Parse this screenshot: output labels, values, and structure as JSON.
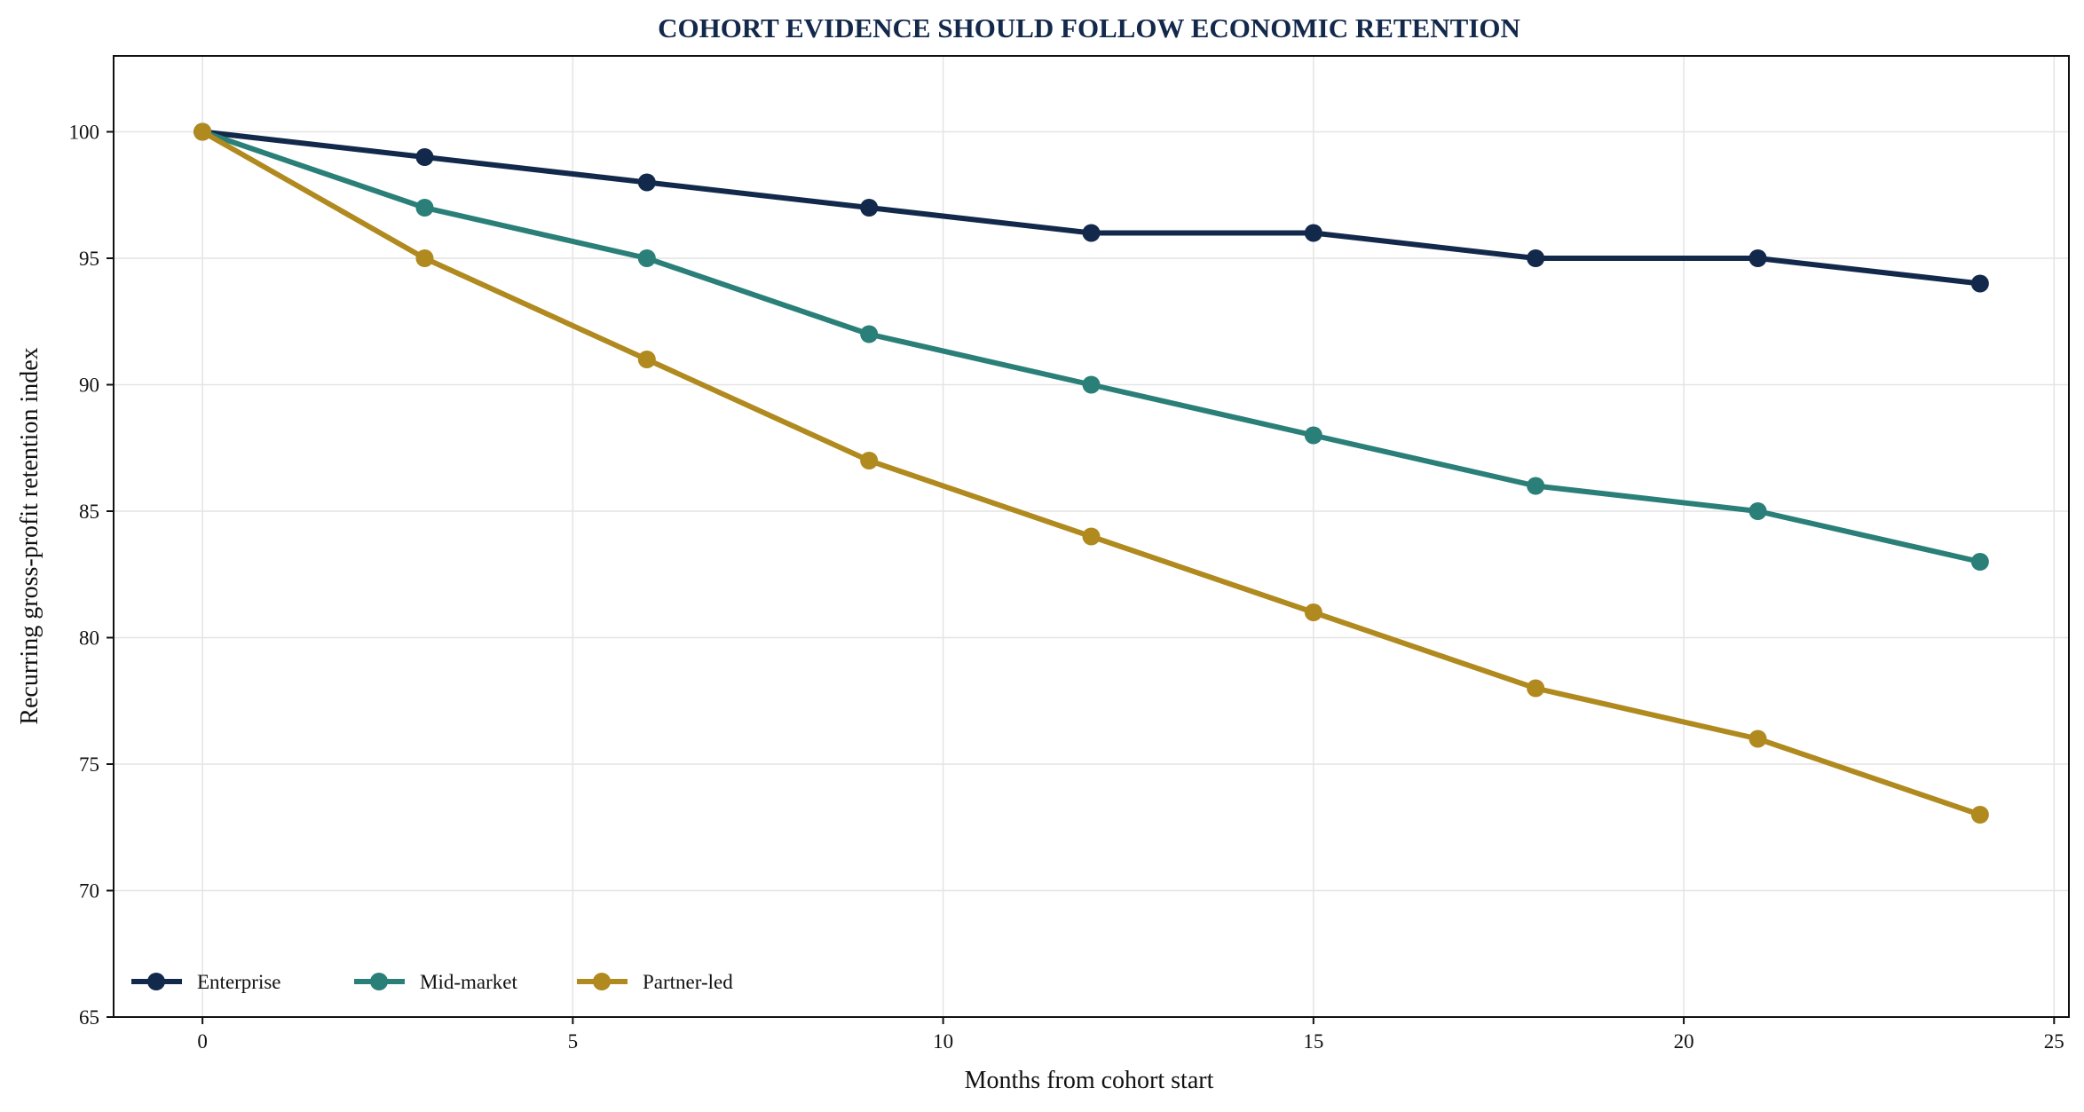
{
  "chart_data": {
    "type": "line",
    "title": "COHORT EVIDENCE SHOULD FOLLOW ECONOMIC RETENTION",
    "xlabel": "Months from cohort start",
    "ylabel": "Recurring gross-profit retention index",
    "x": [
      0,
      3,
      6,
      9,
      12,
      15,
      18,
      21,
      24
    ],
    "xlim": [
      -1.2,
      25.2
    ],
    "ylim": [
      65,
      103
    ],
    "xticks": [
      0,
      5,
      10,
      15,
      20,
      25
    ],
    "yticks": [
      65,
      70,
      75,
      80,
      85,
      90,
      95,
      100
    ],
    "grid": true,
    "legend_position": "bottom-left",
    "series": [
      {
        "name": "Enterprise",
        "color": "#13294b",
        "values": [
          100,
          99,
          98,
          97,
          96,
          96,
          95,
          95,
          94
        ]
      },
      {
        "name": "Mid-market",
        "color": "#2a7f78",
        "values": [
          100,
          97,
          95,
          92,
          90,
          88,
          86,
          85,
          83
        ]
      },
      {
        "name": "Partner-led",
        "color": "#b08a1e",
        "values": [
          100,
          95,
          91,
          87,
          84,
          81,
          78,
          76,
          73
        ]
      }
    ]
  }
}
